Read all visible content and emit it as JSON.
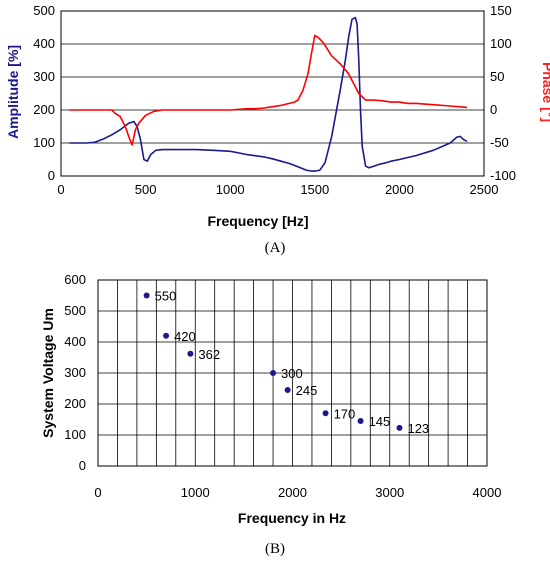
{
  "chart_data": [
    {
      "type": "line",
      "panel_label": "(A)",
      "xlabel": "Frequency [Hz]",
      "ylabel": "Amplitude [%]",
      "y2label": "Phase [°]",
      "xlim": [
        0,
        2500
      ],
      "ylim": [
        0,
        500
      ],
      "y2lim": [
        -100,
        150
      ],
      "xticks": [
        "0",
        "500",
        "1000",
        "1500",
        "2000",
        "2500"
      ],
      "yticks": [
        "0",
        "100",
        "200",
        "300",
        "400",
        "500"
      ],
      "y2ticks": [
        "-100",
        "-50",
        "0",
        "50",
        "100",
        "150"
      ],
      "grid": "horizontal",
      "series": [
        {
          "axis": "left",
          "color": "#1a1a8c",
          "x": [
            50,
            150,
            200,
            250,
            300,
            350,
            400,
            430,
            450,
            470,
            490,
            510,
            530,
            560,
            600,
            700,
            800,
            900,
            1000,
            1050,
            1100,
            1200,
            1250,
            1300,
            1350,
            1400,
            1450,
            1480,
            1500,
            1530,
            1560,
            1600,
            1650,
            1680,
            1700,
            1720,
            1740,
            1750,
            1760,
            1770,
            1780,
            1800,
            1820,
            1850,
            1880,
            1920,
            1950,
            2000,
            2100,
            2200,
            2300,
            2340,
            2360,
            2380,
            2400
          ],
          "y": [
            100,
            100,
            102,
            112,
            125,
            140,
            160,
            165,
            150,
            110,
            50,
            45,
            65,
            78,
            80,
            80,
            80,
            78,
            75,
            70,
            65,
            58,
            52,
            45,
            38,
            28,
            18,
            15,
            15,
            18,
            40,
            120,
            260,
            350,
            420,
            475,
            480,
            460,
            350,
            200,
            90,
            30,
            25,
            30,
            35,
            40,
            45,
            50,
            62,
            78,
            100,
            118,
            120,
            110,
            105
          ]
        },
        {
          "axis": "right",
          "color": "#ff0000",
          "x": [
            50,
            150,
            250,
            300,
            320,
            350,
            380,
            400,
            420,
            440,
            460,
            500,
            550,
            600,
            650,
            700,
            800,
            900,
            1000,
            1100,
            1150,
            1200,
            1250,
            1300,
            1350,
            1380,
            1400,
            1430,
            1460,
            1480,
            1500,
            1520,
            1550,
            1600,
            1650,
            1700,
            1730,
            1760,
            1800,
            1830,
            1850,
            1900,
            1950,
            2000,
            2050,
            2100,
            2200,
            2300,
            2400
          ],
          "y": [
            0,
            0,
            0,
            0,
            -5,
            -10,
            -25,
            -40,
            -53,
            -30,
            -20,
            -8,
            -2,
            0,
            0,
            0,
            0,
            0,
            0,
            2,
            2,
            3,
            5,
            7,
            10,
            12,
            15,
            30,
            55,
            85,
            113,
            110,
            102,
            82,
            70,
            55,
            40,
            25,
            15,
            15,
            15,
            14,
            12,
            12,
            10,
            10,
            8,
            6,
            4
          ]
        }
      ]
    },
    {
      "type": "scatter",
      "panel_label": "(B)",
      "xlabel": "Frequency in Hz",
      "ylabel": "System Voltage Um",
      "xlim": [
        0,
        4000
      ],
      "ylim": [
        0,
        600
      ],
      "xticks": [
        "0",
        "1000",
        "2000",
        "3000",
        "4000"
      ],
      "yticks": [
        "0",
        "100",
        "200",
        "300",
        "400",
        "500",
        "600"
      ],
      "grid": "both",
      "color": "#1a1a8c",
      "points": [
        {
          "x": 500,
          "y": 550,
          "label": "550"
        },
        {
          "x": 700,
          "y": 420,
          "label": "420"
        },
        {
          "x": 950,
          "y": 362,
          "label": "362"
        },
        {
          "x": 1800,
          "y": 300,
          "label": "300"
        },
        {
          "x": 1950,
          "y": 245,
          "label": "245"
        },
        {
          "x": 2340,
          "y": 170,
          "label": "170"
        },
        {
          "x": 2700,
          "y": 145,
          "label": "145"
        },
        {
          "x": 3100,
          "y": 123,
          "label": "123"
        }
      ]
    }
  ]
}
